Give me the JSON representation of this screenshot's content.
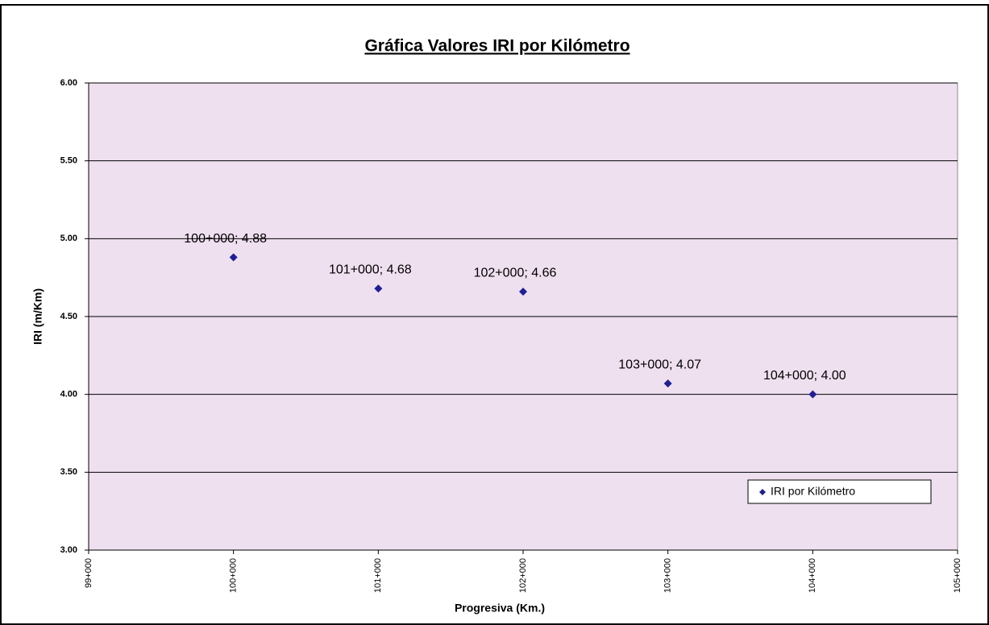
{
  "chart_data": {
    "type": "scatter",
    "title": "Gráfica Valores IRI por Kilómetro",
    "x_label": "Progresiva (Km.)",
    "y_label": "IRI (m/Km)",
    "x": [
      100,
      101,
      102,
      103,
      104
    ],
    "series": [
      {
        "name": "IRI por Kilómetro",
        "color": "#1f1f99",
        "values": [
          4.88,
          4.68,
          4.66,
          4.07,
          4.0
        ],
        "value_labels": [
          "100+000; 4.88",
          "101+000; 4.68",
          "102+000; 4.66",
          "103+000; 4.07",
          "104+000; 4.00"
        ]
      }
    ],
    "xlim": [
      99,
      105
    ],
    "ylim": [
      3,
      6
    ],
    "xticks": [
      {
        "value": 99,
        "label": "99+000"
      },
      {
        "value": 100,
        "label": "100+000"
      },
      {
        "value": 101,
        "label": "101+000"
      },
      {
        "value": 102,
        "label": "102+000"
      },
      {
        "value": 103,
        "label": "103+000"
      },
      {
        "value": 104,
        "label": "104+000"
      },
      {
        "value": 105,
        "label": "105+000"
      }
    ],
    "yticks": [
      {
        "value": 3,
        "label": "3.00"
      },
      {
        "value": 3.5,
        "label": "3.50"
      },
      {
        "value": 4,
        "label": "4.00"
      },
      {
        "value": 4.5,
        "label": "4.50"
      },
      {
        "value": 5,
        "label": "5.00"
      },
      {
        "value": 5.5,
        "label": "5.50"
      },
      {
        "value": 6,
        "label": "6.00"
      }
    ],
    "grid": true,
    "legend": "bottom-right",
    "plot_background": "#efe0ef"
  }
}
